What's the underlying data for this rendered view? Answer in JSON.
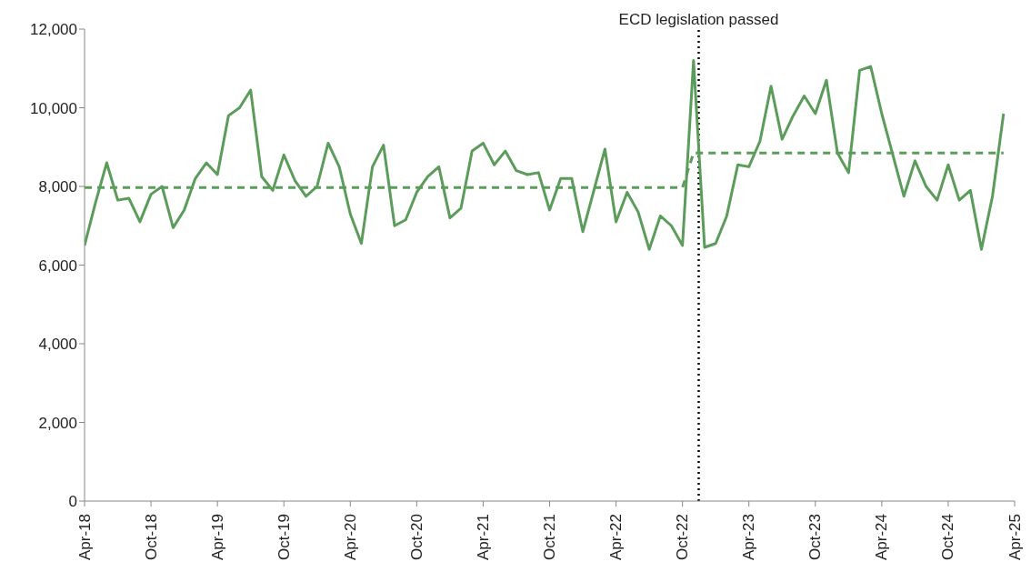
{
  "chart_data": {
    "type": "line",
    "x": [
      "2018-04",
      "2018-05",
      "2018-06",
      "2018-07",
      "2018-08",
      "2018-09",
      "2018-10",
      "2018-11",
      "2018-12",
      "2019-01",
      "2019-02",
      "2019-03",
      "2019-04",
      "2019-05",
      "2019-06",
      "2019-07",
      "2019-08",
      "2019-09",
      "2019-10",
      "2019-11",
      "2019-12",
      "2020-01",
      "2020-02",
      "2020-03",
      "2020-04",
      "2020-05",
      "2020-06",
      "2020-07",
      "2020-08",
      "2020-09",
      "2020-10",
      "2020-11",
      "2020-12",
      "2021-01",
      "2021-02",
      "2021-03",
      "2021-04",
      "2021-05",
      "2021-06",
      "2021-07",
      "2021-08",
      "2021-09",
      "2021-10",
      "2021-11",
      "2021-12",
      "2022-01",
      "2022-02",
      "2022-03",
      "2022-04",
      "2022-05",
      "2022-06",
      "2022-07",
      "2022-08",
      "2022-09",
      "2022-10",
      "2022-11",
      "2022-12",
      "2023-01",
      "2023-02",
      "2023-03",
      "2023-04",
      "2023-05",
      "2023-06",
      "2023-07",
      "2023-08",
      "2023-09",
      "2023-10",
      "2023-11",
      "2023-12",
      "2024-01",
      "2024-02",
      "2024-03",
      "2024-04",
      "2024-05",
      "2024-06",
      "2024-07",
      "2024-08",
      "2024-09",
      "2024-10",
      "2024-11",
      "2024-12",
      "2025-01",
      "2025-02",
      "2025-03"
    ],
    "series": [
      {
        "color": "#5b9c5b",
        "line_style": "solid",
        "values": [
          6500,
          7600,
          8600,
          7650,
          7700,
          7100,
          7800,
          8000,
          6950,
          7400,
          8200,
          8600,
          8300,
          9800,
          10000,
          10450,
          8250,
          7900,
          8800,
          8150,
          7750,
          8000,
          9100,
          8500,
          7300,
          6550,
          8500,
          9050,
          7000,
          7150,
          7850,
          8250,
          8500,
          7200,
          7450,
          8900,
          9100,
          8550,
          8900,
          8400,
          8300,
          8350,
          7400,
          8200,
          8200,
          6850,
          7900,
          8950,
          7100,
          7850,
          7350,
          6400,
          7250,
          7000,
          6500,
          11200,
          6450,
          6550,
          7250,
          8550,
          8500,
          9150,
          10550,
          9200,
          9800,
          10300,
          9850,
          10700,
          8850,
          8350,
          10950,
          11050,
          9850,
          8800,
          7750,
          8650,
          8000,
          7650,
          8550,
          7650,
          7900,
          6400,
          7750,
          9850
        ]
      },
      {
        "color": "#5b9c5b",
        "line_style": "dashed",
        "values": [
          7970,
          7970,
          7970,
          7970,
          7970,
          7970,
          7970,
          7970,
          7970,
          7970,
          7970,
          7970,
          7970,
          7970,
          7970,
          7970,
          7970,
          7970,
          7970,
          7970,
          7970,
          7970,
          7970,
          7970,
          7970,
          7970,
          7970,
          7970,
          7970,
          7970,
          7970,
          7970,
          7970,
          7970,
          7970,
          7970,
          7970,
          7970,
          7970,
          7970,
          7970,
          7970,
          7970,
          7970,
          7970,
          7970,
          7970,
          7970,
          7970,
          7970,
          7970,
          7970,
          7970,
          7970,
          7970,
          8850,
          8850,
          8850,
          8850,
          8850,
          8850,
          8850,
          8850,
          8850,
          8850,
          8850,
          8850,
          8850,
          8850,
          8850,
          8850,
          8850,
          8850,
          8850,
          8850,
          8850,
          8850,
          8850,
          8850,
          8850,
          8850,
          8850,
          8850,
          8850
        ]
      }
    ],
    "xlim": [
      "2018-04",
      "2025-04"
    ],
    "xticks": [
      {
        "value": "2018-04",
        "label": "Apr-18"
      },
      {
        "value": "2018-10",
        "label": "Oct-18"
      },
      {
        "value": "2019-04",
        "label": "Apr-19"
      },
      {
        "value": "2019-10",
        "label": "Oct-19"
      },
      {
        "value": "2020-04",
        "label": "Apr-20"
      },
      {
        "value": "2020-10",
        "label": "Oct-20"
      },
      {
        "value": "2021-04",
        "label": "Apr-21"
      },
      {
        "value": "2021-10",
        "label": "Oct-21"
      },
      {
        "value": "2022-04",
        "label": "Apr-22"
      },
      {
        "value": "2022-10",
        "label": "Oct-22"
      },
      {
        "value": "2023-04",
        "label": "Apr-23"
      },
      {
        "value": "2023-10",
        "label": "Oct-23"
      },
      {
        "value": "2024-04",
        "label": "Apr-24"
      },
      {
        "value": "2024-10",
        "label": "Oct-24"
      },
      {
        "value": "2025-04",
        "label": "Apr-25"
      }
    ],
    "ylim": [
      0,
      12000
    ],
    "yticks": [
      0,
      {
        "value": 2000,
        "label": "2,000"
      },
      {
        "value": 4000,
        "label": "4,000"
      },
      {
        "value": 6000,
        "label": "6,000"
      },
      {
        "value": 8000,
        "label": "8,000"
      },
      {
        "value": 10000,
        "label": "10,000"
      },
      {
        "value": 12000,
        "label": "12,000"
      }
    ],
    "ref_lines": [
      {
        "axis": "x",
        "value": "2022-11-15",
        "label": "ECD legislation passed",
        "color": "#000000",
        "line_style": "dotted"
      }
    ],
    "grid": false,
    "legend": false,
    "marker": "none"
  }
}
